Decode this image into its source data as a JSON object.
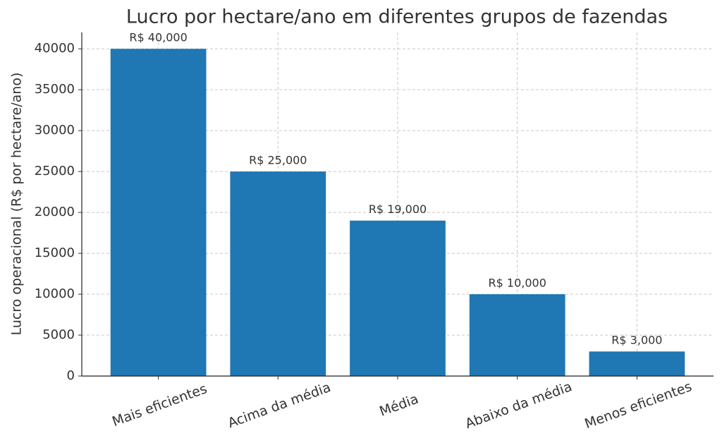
{
  "chart_data": {
    "type": "bar",
    "title": "Lucro por hectare/ano em diferentes grupos de fazendas",
    "y_label": "Lucro operacional (R$ por hectare/ano)",
    "categories": [
      "Mais eficientes",
      "Acima da média",
      "Média",
      "Abaixo da média",
      "Menos eficientes"
    ],
    "values": [
      40000,
      25000,
      19000,
      10000,
      3000
    ],
    "value_labels": [
      "R$ 40,000",
      "R$ 25,000",
      "R$ 19,000",
      "R$ 10,000",
      "R$ 3,000"
    ],
    "color": "#1f77b4",
    "ylim": [
      0,
      42000
    ],
    "yticks": [
      0,
      5000,
      10000,
      15000,
      20000,
      25000,
      30000,
      35000,
      40000
    ],
    "grid": true
  }
}
